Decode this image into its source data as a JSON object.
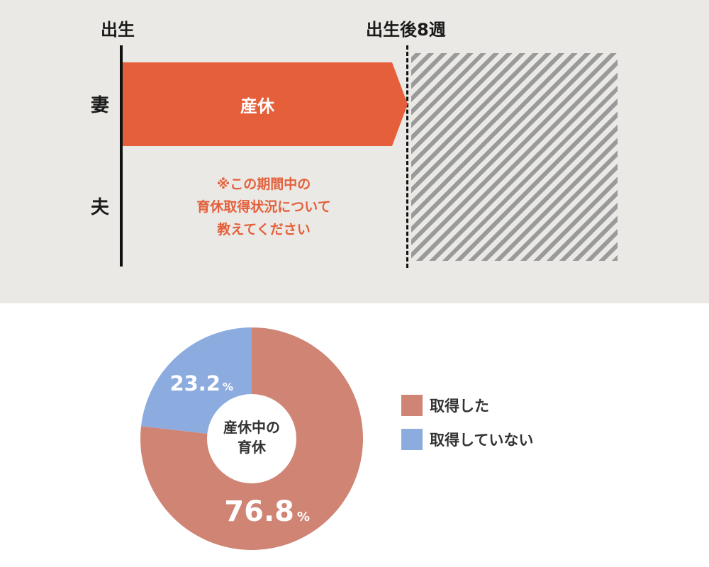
{
  "timeline": {
    "birth_label": "出生",
    "eight_weeks_label": "出生後8週",
    "wife_label": "妻",
    "husband_label": "夫",
    "maternity_leave_label": "産休",
    "note_lines": [
      "※この期間中の",
      "育休取得状況について",
      "教えてください"
    ],
    "colors": {
      "leave_bar": "#e45f3a",
      "note_text": "#e4603c",
      "hatch": "#9a9a9a"
    }
  },
  "chart_data": {
    "type": "pie",
    "center_label_lines": [
      "産休中の",
      "育休"
    ],
    "slices": [
      {
        "name": "取得した",
        "value": 76.8,
        "display_value": "76.8",
        "color": "#cf8474"
      },
      {
        "name": "取得していない",
        "value": 23.2,
        "display_value": "23.2",
        "color": "#8cace0"
      }
    ],
    "percent_unit": "%",
    "legend_position": "right"
  }
}
